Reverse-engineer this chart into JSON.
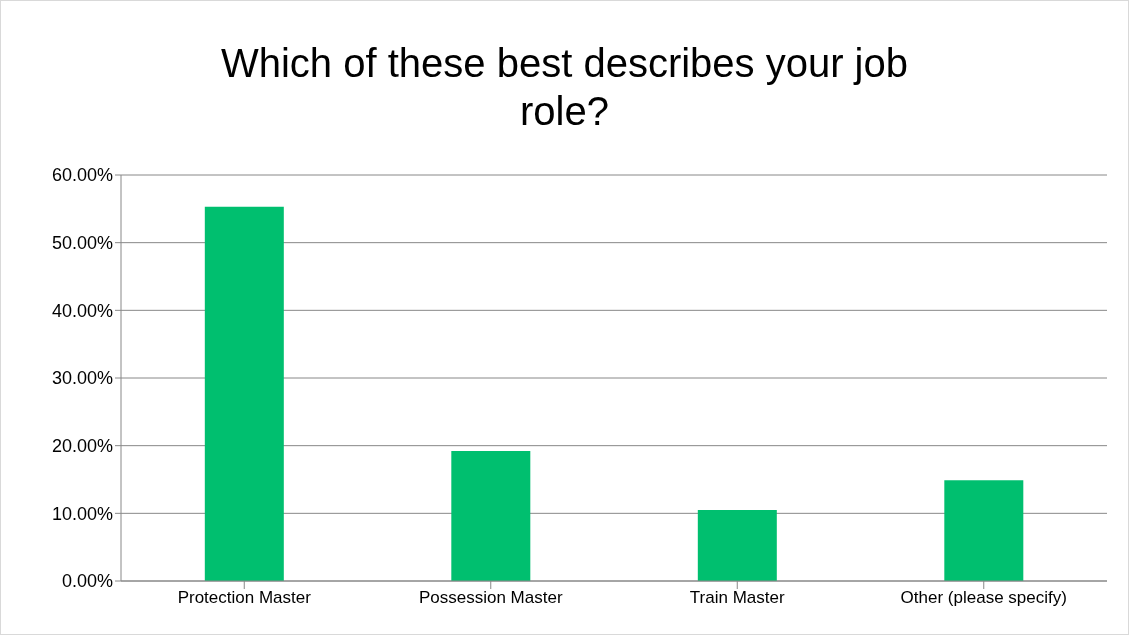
{
  "chart_data": {
    "type": "bar",
    "title": "Which of these best describes your job role?",
    "categories": [
      "Protection Master",
      "Possession Master",
      "Train Master",
      "Other (please specify)"
    ],
    "values": [
      55.3,
      19.2,
      10.5,
      14.9
    ],
    "color": "#00bf6f",
    "ylim": [
      0,
      60
    ],
    "yticks": [
      {
        "value": 0,
        "label": "0.00%"
      },
      {
        "value": 10,
        "label": "10.00%"
      },
      {
        "value": 20,
        "label": "20.00%"
      },
      {
        "value": 30,
        "label": "30.00%"
      },
      {
        "value": 40,
        "label": "40.00%"
      },
      {
        "value": 50,
        "label": "50.00%"
      },
      {
        "value": 60,
        "label": "60.00%"
      }
    ],
    "grid": "y"
  }
}
